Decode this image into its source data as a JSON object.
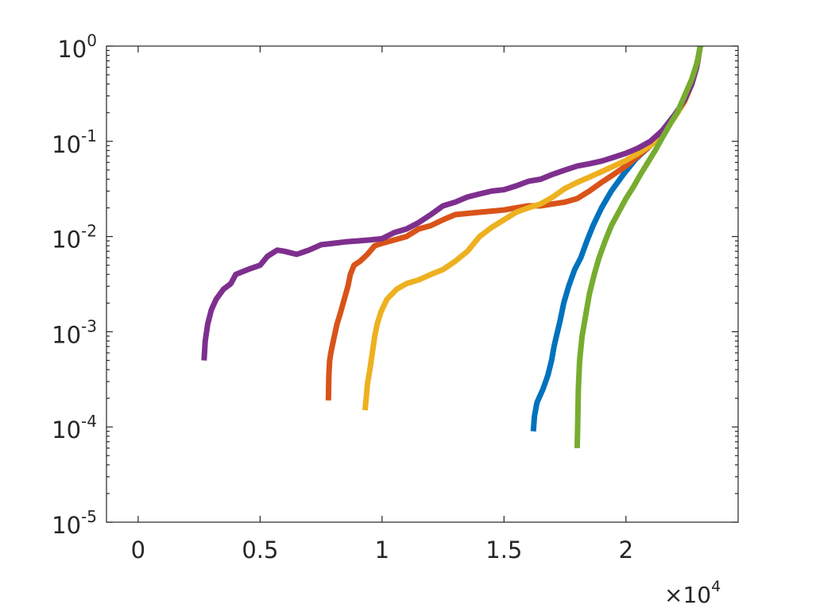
{
  "chart_data": {
    "type": "line",
    "title": "",
    "xlabel": "",
    "ylabel": "",
    "x_scale": "linear",
    "y_scale": "log",
    "xlim": [
      -1300,
      24600
    ],
    "ylim": [
      1e-05,
      1
    ],
    "x_multiplier_label": {
      "times": "×10",
      "exponent": "4"
    },
    "x_ticks": [
      {
        "value": 0,
        "label": "0"
      },
      {
        "value": 5000,
        "label": "0.5"
      },
      {
        "value": 10000,
        "label": "1"
      },
      {
        "value": 15000,
        "label": "1.5"
      },
      {
        "value": 20000,
        "label": "2"
      }
    ],
    "y_ticks": [
      {
        "value": 1e-05,
        "base": "10",
        "exp": "-5"
      },
      {
        "value": 0.0001,
        "base": "10",
        "exp": "-4"
      },
      {
        "value": 0.001,
        "base": "10",
        "exp": "-3"
      },
      {
        "value": 0.01,
        "base": "10",
        "exp": "-2"
      },
      {
        "value": 0.1,
        "base": "10",
        "exp": "-1"
      },
      {
        "value": 1,
        "base": "10",
        "exp": "0"
      }
    ],
    "grid": false,
    "legend": "none",
    "series": [
      {
        "color": "#0072BD",
        "points": [
          [
            16200,
            9e-05
          ],
          [
            16250,
            0.00013
          ],
          [
            16350,
            0.00018
          ],
          [
            16600,
            0.00025
          ],
          [
            16800,
            0.00035
          ],
          [
            16950,
            0.0005
          ],
          [
            17050,
            0.0007
          ],
          [
            17150,
            0.0009
          ],
          [
            17300,
            0.0013
          ],
          [
            17450,
            0.002
          ],
          [
            17650,
            0.003
          ],
          [
            17900,
            0.0045
          ],
          [
            18150,
            0.006
          ],
          [
            18400,
            0.009
          ],
          [
            18650,
            0.013
          ],
          [
            19000,
            0.02
          ],
          [
            19400,
            0.03
          ],
          [
            19900,
            0.045
          ],
          [
            20400,
            0.065
          ],
          [
            21000,
            0.09
          ],
          [
            21500,
            0.13
          ],
          [
            22000,
            0.19
          ],
          [
            22400,
            0.27
          ],
          [
            22700,
            0.4
          ],
          [
            22900,
            0.6
          ],
          [
            23000,
            0.85
          ],
          [
            23050,
            1.0
          ]
        ]
      },
      {
        "color": "#D95319",
        "points": [
          [
            7800,
            0.00019
          ],
          [
            7820,
            0.00035
          ],
          [
            7850,
            0.0005
          ],
          [
            7900,
            0.0006
          ],
          [
            8000,
            0.0008
          ],
          [
            8150,
            0.0012
          ],
          [
            8300,
            0.0016
          ],
          [
            8450,
            0.0022
          ],
          [
            8600,
            0.003
          ],
          [
            8700,
            0.004
          ],
          [
            8850,
            0.005
          ],
          [
            9100,
            0.0055
          ],
          [
            9400,
            0.0065
          ],
          [
            9700,
            0.008
          ],
          [
            10000,
            0.0085
          ],
          [
            10500,
            0.0092
          ],
          [
            11000,
            0.01
          ],
          [
            11500,
            0.012
          ],
          [
            12000,
            0.013
          ],
          [
            12500,
            0.015
          ],
          [
            13000,
            0.017
          ],
          [
            13500,
            0.0175
          ],
          [
            14000,
            0.018
          ],
          [
            14500,
            0.0185
          ],
          [
            15000,
            0.019
          ],
          [
            15500,
            0.02
          ],
          [
            16000,
            0.021
          ],
          [
            16500,
            0.021
          ],
          [
            17000,
            0.022
          ],
          [
            17500,
            0.023
          ],
          [
            18000,
            0.025
          ],
          [
            18500,
            0.03
          ],
          [
            19000,
            0.037
          ],
          [
            19500,
            0.045
          ],
          [
            20000,
            0.055
          ],
          [
            20500,
            0.07
          ],
          [
            21000,
            0.09
          ],
          [
            21500,
            0.12
          ],
          [
            22000,
            0.18
          ],
          [
            22400,
            0.26
          ],
          [
            22700,
            0.4
          ],
          [
            22900,
            0.6
          ],
          [
            23000,
            0.85
          ],
          [
            23050,
            1.0
          ]
        ]
      },
      {
        "color": "#EDB120",
        "points": [
          [
            9300,
            0.00015
          ],
          [
            9350,
            0.0002
          ],
          [
            9400,
            0.00028
          ],
          [
            9500,
            0.0004
          ],
          [
            9600,
            0.0006
          ],
          [
            9700,
            0.0009
          ],
          [
            9800,
            0.0012
          ],
          [
            9950,
            0.0016
          ],
          [
            10200,
            0.0022
          ],
          [
            10600,
            0.0028
          ],
          [
            11000,
            0.0032
          ],
          [
            11500,
            0.0035
          ],
          [
            12000,
            0.004
          ],
          [
            12500,
            0.0045
          ],
          [
            13000,
            0.0055
          ],
          [
            13500,
            0.007
          ],
          [
            14000,
            0.01
          ],
          [
            14500,
            0.0125
          ],
          [
            15000,
            0.015
          ],
          [
            15500,
            0.018
          ],
          [
            16000,
            0.02
          ],
          [
            16500,
            0.022
          ],
          [
            17000,
            0.026
          ],
          [
            17500,
            0.032
          ],
          [
            18000,
            0.037
          ],
          [
            18500,
            0.042
          ],
          [
            19000,
            0.048
          ],
          [
            19500,
            0.055
          ],
          [
            20000,
            0.063
          ],
          [
            20500,
            0.075
          ],
          [
            21000,
            0.09
          ],
          [
            21500,
            0.12
          ],
          [
            22000,
            0.18
          ],
          [
            22400,
            0.26
          ],
          [
            22700,
            0.4
          ],
          [
            22900,
            0.6
          ],
          [
            23000,
            0.85
          ],
          [
            23050,
            1.0
          ]
        ]
      },
      {
        "color": "#7E2F8E",
        "points": [
          [
            2700,
            0.0005
          ],
          [
            2750,
            0.0008
          ],
          [
            2850,
            0.0012
          ],
          [
            3000,
            0.0017
          ],
          [
            3200,
            0.0022
          ],
          [
            3500,
            0.0028
          ],
          [
            3800,
            0.0032
          ],
          [
            4000,
            0.004
          ],
          [
            4500,
            0.0045
          ],
          [
            5000,
            0.005
          ],
          [
            5300,
            0.0062
          ],
          [
            5700,
            0.0072
          ],
          [
            6000,
            0.007
          ],
          [
            6500,
            0.0065
          ],
          [
            7000,
            0.0072
          ],
          [
            7500,
            0.0082
          ],
          [
            8000,
            0.0085
          ],
          [
            8500,
            0.0088
          ],
          [
            9000,
            0.009
          ],
          [
            9500,
            0.0092
          ],
          [
            10000,
            0.0095
          ],
          [
            10500,
            0.011
          ],
          [
            11000,
            0.012
          ],
          [
            11500,
            0.014
          ],
          [
            12000,
            0.017
          ],
          [
            12500,
            0.021
          ],
          [
            13000,
            0.023
          ],
          [
            13500,
            0.026
          ],
          [
            14000,
            0.028
          ],
          [
            14500,
            0.03
          ],
          [
            15000,
            0.031
          ],
          [
            15500,
            0.034
          ],
          [
            16000,
            0.038
          ],
          [
            16500,
            0.04
          ],
          [
            17000,
            0.045
          ],
          [
            17500,
            0.05
          ],
          [
            18000,
            0.055
          ],
          [
            18500,
            0.058
          ],
          [
            19000,
            0.062
          ],
          [
            19500,
            0.068
          ],
          [
            20000,
            0.075
          ],
          [
            20500,
            0.085
          ],
          [
            21000,
            0.1
          ],
          [
            21500,
            0.13
          ],
          [
            22000,
            0.19
          ],
          [
            22400,
            0.27
          ],
          [
            22700,
            0.4
          ],
          [
            22900,
            0.6
          ],
          [
            23000,
            0.85
          ],
          [
            23050,
            1.0
          ]
        ]
      },
      {
        "color": "#77AC30",
        "points": [
          [
            18000,
            6e-05
          ],
          [
            18020,
            0.0001
          ],
          [
            18050,
            0.00025
          ],
          [
            18100,
            0.0005
          ],
          [
            18200,
            0.0009
          ],
          [
            18350,
            0.0015
          ],
          [
            18500,
            0.0025
          ],
          [
            18700,
            0.004
          ],
          [
            18900,
            0.006
          ],
          [
            19150,
            0.009
          ],
          [
            19400,
            0.013
          ],
          [
            19700,
            0.018
          ],
          [
            20000,
            0.025
          ],
          [
            20300,
            0.033
          ],
          [
            20600,
            0.045
          ],
          [
            20900,
            0.06
          ],
          [
            21200,
            0.08
          ],
          [
            21500,
            0.11
          ],
          [
            21800,
            0.15
          ],
          [
            22100,
            0.2
          ],
          [
            22400,
            0.3
          ],
          [
            22700,
            0.45
          ],
          [
            22900,
            0.65
          ],
          [
            23000,
            0.85
          ],
          [
            23050,
            1.0
          ]
        ]
      }
    ]
  }
}
